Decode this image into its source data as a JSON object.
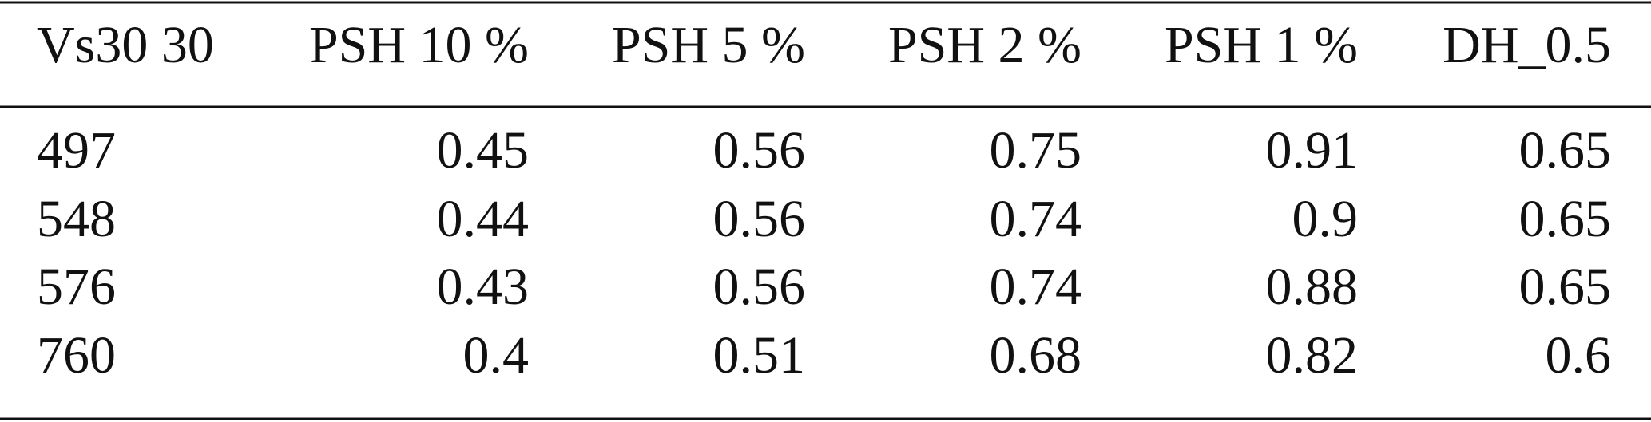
{
  "table": {
    "header": [
      "Vs30 30",
      "PSH 10 %",
      "PSH 5 %",
      "PSH 2 %",
      "PSH 1 %",
      "DH_0.5"
    ],
    "rows": [
      [
        497,
        0.45,
        0.56,
        0.75,
        0.91,
        0.65
      ],
      [
        548,
        0.44,
        0.56,
        0.74,
        0.9,
        0.65
      ],
      [
        576,
        0.43,
        0.56,
        0.74,
        0.88,
        0.65
      ],
      [
        760,
        0.4,
        0.51,
        0.68,
        0.82,
        0.6
      ]
    ]
  }
}
